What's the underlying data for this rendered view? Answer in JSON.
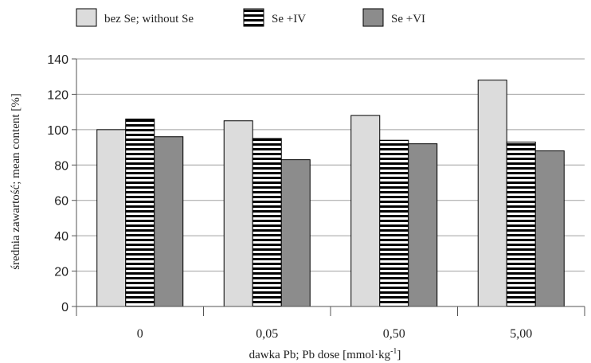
{
  "chart_data": {
    "type": "bar",
    "categories": [
      "0",
      "0,05",
      "0,50",
      "5,00"
    ],
    "series": [
      {
        "name": "bez Se; without Se",
        "values": [
          100,
          105,
          108,
          128
        ],
        "color": "#dcdcdc",
        "pattern": "solid"
      },
      {
        "name": "Se +IV",
        "values": [
          106,
          95,
          94,
          93
        ],
        "color": "#ffffff",
        "pattern": "horizontal-stripes"
      },
      {
        "name": "Se +VI",
        "values": [
          96,
          83,
          92,
          88
        ],
        "color": "#8c8c8c",
        "pattern": "solid"
      }
    ],
    "xlabel": "dawka Pb; Pb dose [mmol·kg",
    "xlabel_sup": "-1",
    "xlabel_end": "]",
    "ylabel": "średnia zawartość; mean content [%]",
    "ylim": [
      0,
      140
    ],
    "yticks": [
      "0",
      "20",
      "40",
      "60",
      "80",
      "100",
      "120",
      "140"
    ],
    "grid": true,
    "legend_position": "top"
  }
}
